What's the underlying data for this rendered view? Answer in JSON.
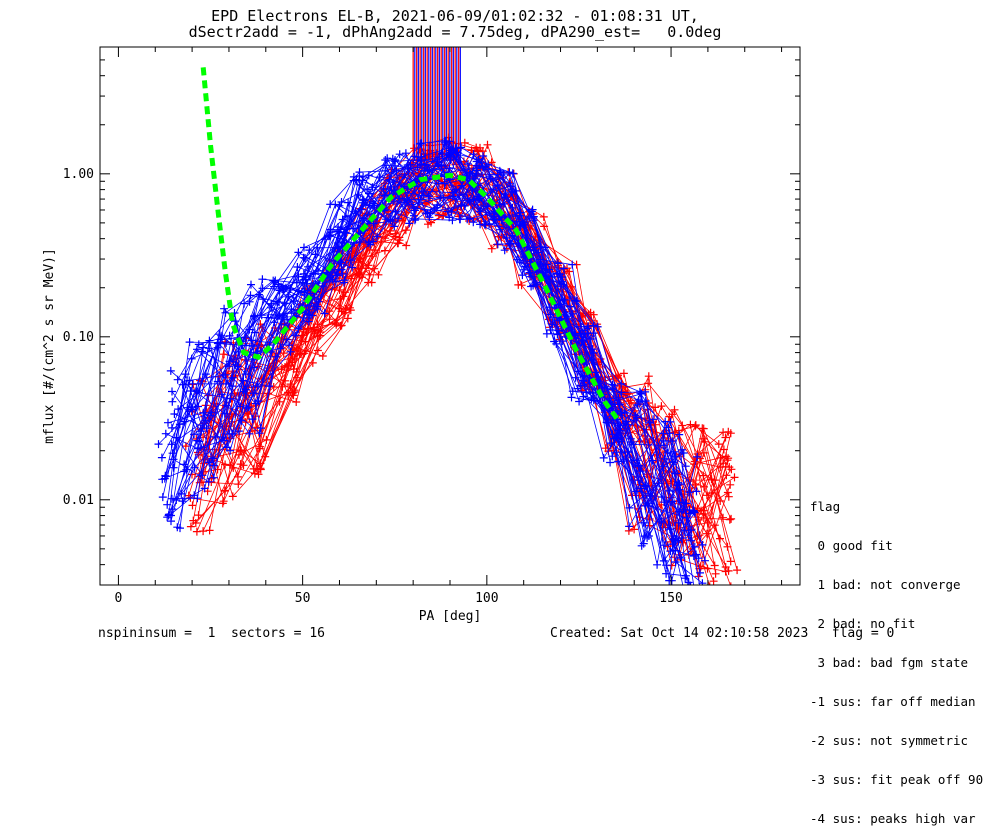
{
  "header": {
    "title_line1": "EPD Electrons EL-B, 2021-06-09/01:02:32 - 01:08:31 UT,",
    "title_line2": "dSectr2add = -1, dPhAng2add = 7.75deg, dPA290_est=   0.0deg"
  },
  "footer": {
    "left": "nspininsum =  1  sectors = 16",
    "right": "Created: Sat Oct 14 02:10:58 2023   flag = 0"
  },
  "legend": {
    "title": "flag",
    "items": [
      " 0 good fit",
      " 1 bad: not converge",
      " 2 bad: no fit",
      " 3 bad: bad fgm state",
      "-1 sus: far off median",
      "-2 sus: not symmetric",
      "-3 sus: fit peak off 90",
      "-4 sus: peaks high var"
    ]
  },
  "colors": {
    "red": "#ff0000",
    "blue": "#0000ff",
    "green": "#00ff00",
    "axis": "#000000"
  },
  "chart_data": {
    "type": "line",
    "title": "EPD Electrons EL-B, 2021-06-09/01:02:32 - 01:08:31 UT,",
    "subtitle": "dSectr2add = -1, dPhAng2add = 7.75deg, dPA290_est=   0.0deg",
    "xlabel": "PA [deg]",
    "ylabel": "mflux [#/(cm^2 s sr MeV)]",
    "xlim": [
      -5,
      185
    ],
    "ylim": [
      0.003,
      6.0
    ],
    "yscale": "log",
    "x_ticks": [
      0,
      50,
      100,
      150
    ],
    "y_ticks": [
      0.01,
      0.1,
      1.0
    ],
    "y_tick_labels": [
      "0.01",
      "0.10",
      "1.00"
    ],
    "series": [
      {
        "color": "red",
        "style": "solid-plus",
        "x": [
          22,
          30,
          37,
          45,
          52,
          60,
          67,
          75,
          82,
          90,
          97,
          105,
          112,
          120,
          127,
          135,
          142,
          150,
          157,
          164
        ],
        "y": [
          0.02,
          0.03,
          0.045,
          0.07,
          0.12,
          0.2,
          0.35,
          0.6,
          0.85,
          0.95,
          0.85,
          0.6,
          0.35,
          0.17,
          0.08,
          0.035,
          0.02,
          0.012,
          0.01,
          0.009
        ]
      },
      {
        "color": "blue",
        "style": "solid-plus",
        "x": [
          15,
          22,
          30,
          37,
          45,
          52,
          60,
          67,
          75,
          82,
          90,
          97,
          105,
          112,
          120,
          127,
          135,
          142,
          150,
          155
        ],
        "y": [
          0.02,
          0.03,
          0.05,
          0.08,
          0.13,
          0.22,
          0.38,
          0.6,
          0.78,
          0.88,
          0.92,
          0.82,
          0.6,
          0.35,
          0.16,
          0.07,
          0.03,
          0.016,
          0.01,
          0.008
        ]
      },
      {
        "color": "green",
        "style": "dashed",
        "x": [
          23,
          25,
          27,
          29,
          31,
          34,
          38,
          42,
          50,
          58,
          66,
          74,
          82,
          90,
          95,
          100,
          108,
          116,
          124,
          132,
          136
        ],
        "y": [
          4.5,
          1.5,
          0.6,
          0.25,
          0.12,
          0.08,
          0.075,
          0.09,
          0.15,
          0.28,
          0.45,
          0.72,
          0.92,
          0.98,
          0.92,
          0.72,
          0.45,
          0.2,
          0.085,
          0.04,
          0.03
        ]
      }
    ],
    "legend_position": "bottom-right outside"
  }
}
